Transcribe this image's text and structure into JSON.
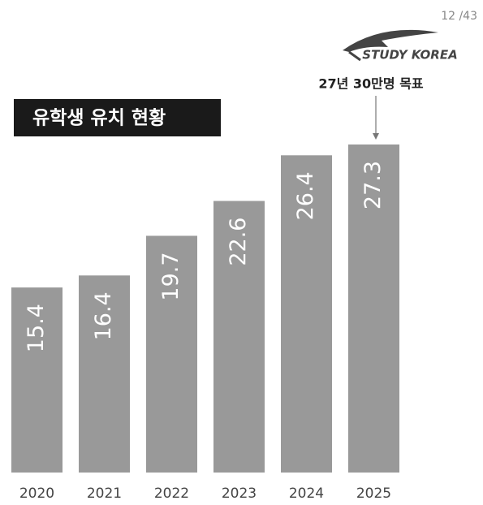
{
  "page_number": "12 /43",
  "logo": "STUDY KOREA",
  "chart_data": {
    "type": "bar",
    "title": "유학생 유치 현황",
    "annotation": "27년 30만명 목표",
    "categories": [
      "2020",
      "2021",
      "2022",
      "2023",
      "2024",
      "2025"
    ],
    "values": [
      15.4,
      16.4,
      19.7,
      22.6,
      26.4,
      27.3
    ],
    "color": "#999999"
  }
}
